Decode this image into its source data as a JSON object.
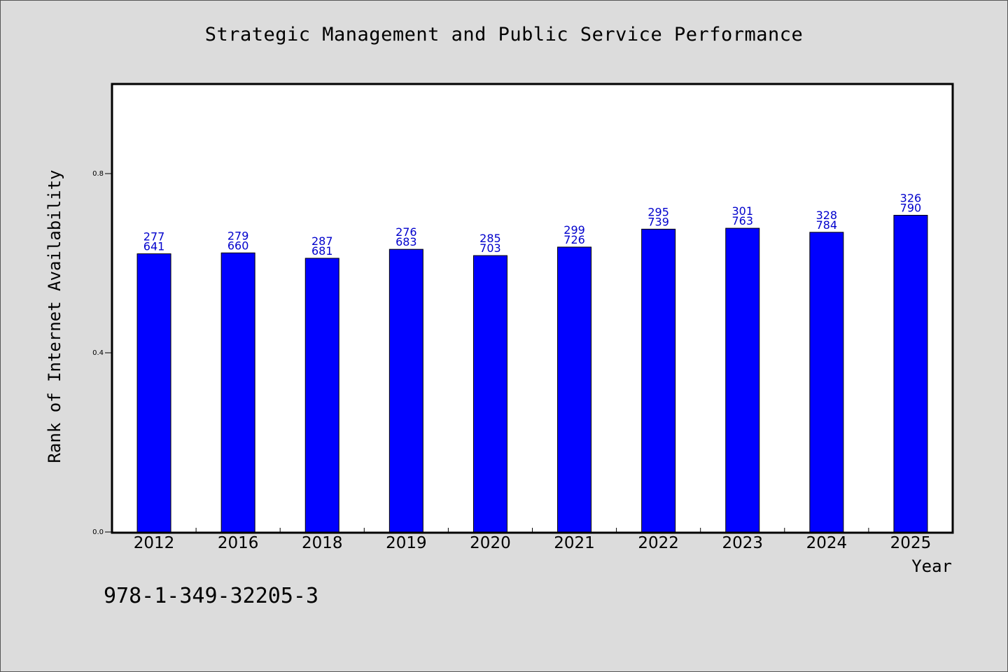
{
  "chart_data": {
    "type": "bar",
    "title": "Strategic Management and Public Service Performance",
    "xlabel": "Year",
    "ylabel": "Rank of Internet Availability",
    "categories": [
      "2012",
      "2016",
      "2018",
      "2019",
      "2020",
      "2021",
      "2022",
      "2023",
      "2024",
      "2025"
    ],
    "values": [
      0.621,
      0.623,
      0.611,
      0.631,
      0.617,
      0.636,
      0.676,
      0.678,
      0.669,
      0.707
    ],
    "data_labels": [
      [
        "277",
        "641"
      ],
      [
        "279",
        "660"
      ],
      [
        "287",
        "681"
      ],
      [
        "276",
        "683"
      ],
      [
        "285",
        "703"
      ],
      [
        "299",
        "726"
      ],
      [
        "295",
        "739"
      ],
      [
        "301",
        "763"
      ],
      [
        "328",
        "784"
      ],
      [
        "326",
        "790"
      ]
    ],
    "yticks": [
      "0.0",
      "0.4",
      "0.8"
    ],
    "ytick_values": [
      0.0,
      0.4,
      0.8
    ],
    "ylim": [
      0,
      1.0
    ],
    "bar_color": "#0000ff",
    "label_color": "#0000cc",
    "background": "#dcdcdc",
    "plot_background": "#ffffff",
    "grid": false,
    "legend": "none"
  },
  "footer": {
    "isbn": "978-1-349-32205-3"
  }
}
